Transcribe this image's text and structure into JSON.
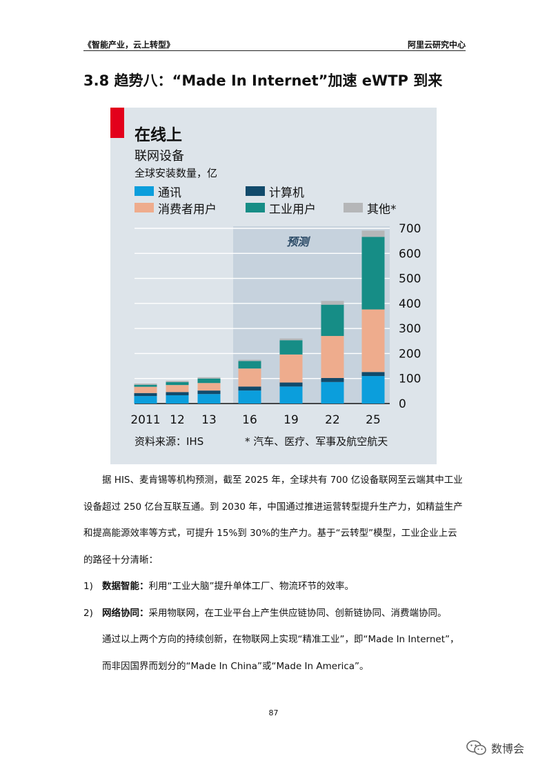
{
  "header": {
    "left": "《智能产业，云上转型》",
    "right": "阿里云研究中心"
  },
  "section_title": "3.8 趋势八：“Made In Internet”加速 eWTP 到来",
  "chart_data": {
    "type": "bar",
    "stacked": true,
    "title": "在线上",
    "subtitle": "联网设备",
    "ylabel": "全球安装数量，亿",
    "categories": [
      "2011",
      "12",
      "13",
      "16",
      "19",
      "22",
      "25"
    ],
    "ylim": [
      0,
      700
    ],
    "yticks": [
      0,
      100,
      200,
      300,
      400,
      500,
      600,
      700
    ],
    "forecast_label": "预测",
    "forecast_start_category": "16",
    "legend_placement": "top",
    "series": [
      {
        "name": "通讯",
        "color": "#0b9edc",
        "values": [
          30,
          33,
          38,
          52,
          68,
          86,
          110
        ]
      },
      {
        "name": "计算机",
        "color": "#114a6b",
        "values": [
          12,
          13,
          14,
          16,
          16,
          16,
          16
        ]
      },
      {
        "name": "消费者用户",
        "color": "#eeac8d",
        "values": [
          25,
          28,
          30,
          72,
          112,
          168,
          250
        ]
      },
      {
        "name": "工业用户",
        "color": "#168d86",
        "values": [
          8,
          12,
          18,
          30,
          57,
          125,
          290
        ]
      },
      {
        "name": "其他*",
        "color": "#b5b6b8",
        "values": [
          5,
          5,
          5,
          5,
          7,
          15,
          25
        ]
      }
    ],
    "source": "资料来源：IHS",
    "note": "* 汽车、医疗、军事及航空航天"
  },
  "paragraphs": {
    "p1": "据 HIS、麦肯锡等机构预测，截至 2025 年，全球共有 700 亿设备联网至云端其中工业设备超过 250 亿台互联互通。到 2030 年，中国通过推进运营转型提升生产力，如精益生产和提高能源效率等方式，可提升 15%到 30%的生产力。基于“云转型”模型，工业企业上云的路径十分清晰："
  },
  "list": [
    {
      "num": "1)",
      "bold": "数据智能：",
      "text": "利用“工业大脑”提升单体工厂、物流环节的效率。"
    },
    {
      "num": "2)",
      "bold": "网络协同：",
      "text": "采用物联网，在工业平台上产生供应链协同、创新链协同、消费端协同。"
    }
  ],
  "continuation": "通过以上两个方向的持续创新，在物联网上实现“精准工业”，即“Made In Internet”，而非因国界而划分的“Made In China”或“Made In America”。",
  "page_number": "87",
  "watermark": {
    "text": "数博会",
    "icon": "wechat-icon"
  }
}
